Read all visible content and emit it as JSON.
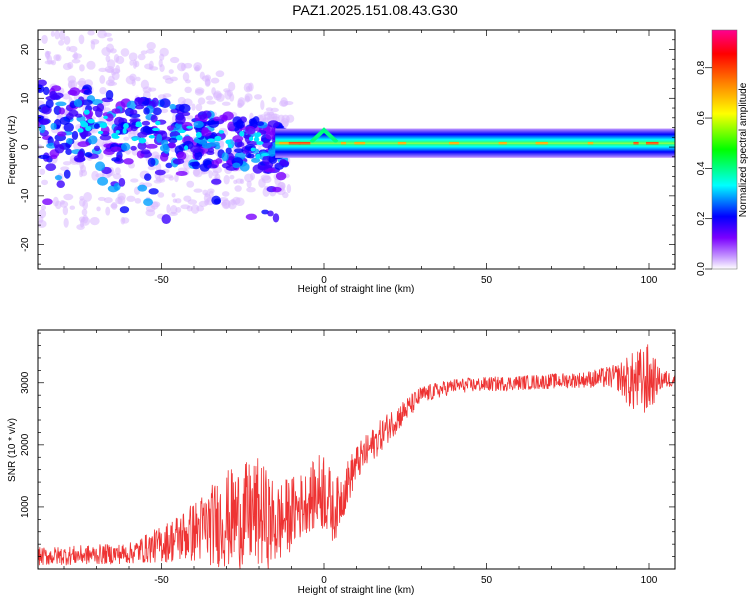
{
  "title": "PAZ1.2025.151.08.43.G30",
  "chart_data": [
    {
      "type": "heatmap",
      "xlabel": "Height of straight line (km)",
      "ylabel": "Frequency (Hz)",
      "xlim": [
        -88,
        108
      ],
      "ylim": [
        -25,
        24
      ],
      "x_ticks": [
        -50,
        0,
        50,
        100
      ],
      "y_ticks": [
        -20,
        -10,
        0,
        10,
        20
      ],
      "colorbar": {
        "label": "Normalized spectral amplitude",
        "range": [
          0.0,
          0.95
        ],
        "ticks": [
          "0.0",
          "0.2",
          "0.4",
          "0.6",
          "0.8"
        ],
        "colormap": [
          "#ffffff",
          "#7b00ff",
          "#0000ff",
          "#00ffff",
          "#00ff00",
          "#ffff00",
          "#ff7f00",
          "#ff0000",
          "#ff0090"
        ]
      },
      "features": {
        "noisy_region_x": [
          -88,
          -15
        ],
        "noisy_region_center_freq": [
          6,
          0
        ],
        "stable_line_x": [
          -15,
          108
        ],
        "stable_line_freq": 0.8,
        "stable_line_amplitude": 0.8,
        "bump_at_x0_freq": 3.5
      }
    },
    {
      "type": "line",
      "xlabel": "Height of straight line (km)",
      "ylabel": "SNR (10 * v/v)",
      "xlim": [
        -88,
        108
      ],
      "ylim": [
        0,
        3850
      ],
      "x_ticks": [
        -50,
        0,
        50,
        100
      ],
      "y_ticks": [
        1000,
        2000,
        3000
      ],
      "color": "#ee3333",
      "envelope": [
        {
          "x": -88,
          "mean": 200,
          "noise": 150
        },
        {
          "x": -60,
          "mean": 250,
          "noise": 170
        },
        {
          "x": -50,
          "mean": 400,
          "noise": 300
        },
        {
          "x": -40,
          "mean": 600,
          "noise": 500
        },
        {
          "x": -30,
          "mean": 800,
          "noise": 800
        },
        {
          "x": -20,
          "mean": 900,
          "noise": 900
        },
        {
          "x": -15,
          "mean": 700,
          "noise": 700
        },
        {
          "x": -10,
          "mean": 900,
          "noise": 600
        },
        {
          "x": -5,
          "mean": 1100,
          "noise": 500
        },
        {
          "x": 0,
          "mean": 1300,
          "noise": 700
        },
        {
          "x": 3,
          "mean": 900,
          "noise": 500
        },
        {
          "x": 10,
          "mean": 1700,
          "noise": 300
        },
        {
          "x": 20,
          "mean": 2300,
          "noise": 250
        },
        {
          "x": 30,
          "mean": 2800,
          "noise": 150
        },
        {
          "x": 40,
          "mean": 2950,
          "noise": 120
        },
        {
          "x": 60,
          "mean": 3000,
          "noise": 120
        },
        {
          "x": 80,
          "mean": 3050,
          "noise": 130
        },
        {
          "x": 90,
          "mean": 3100,
          "noise": 200
        },
        {
          "x": 95,
          "mean": 3000,
          "noise": 500
        },
        {
          "x": 100,
          "mean": 3050,
          "noise": 600
        },
        {
          "x": 103,
          "mean": 3050,
          "noise": 200
        },
        {
          "x": 108,
          "mean": 3050,
          "noise": 100
        }
      ]
    }
  ]
}
